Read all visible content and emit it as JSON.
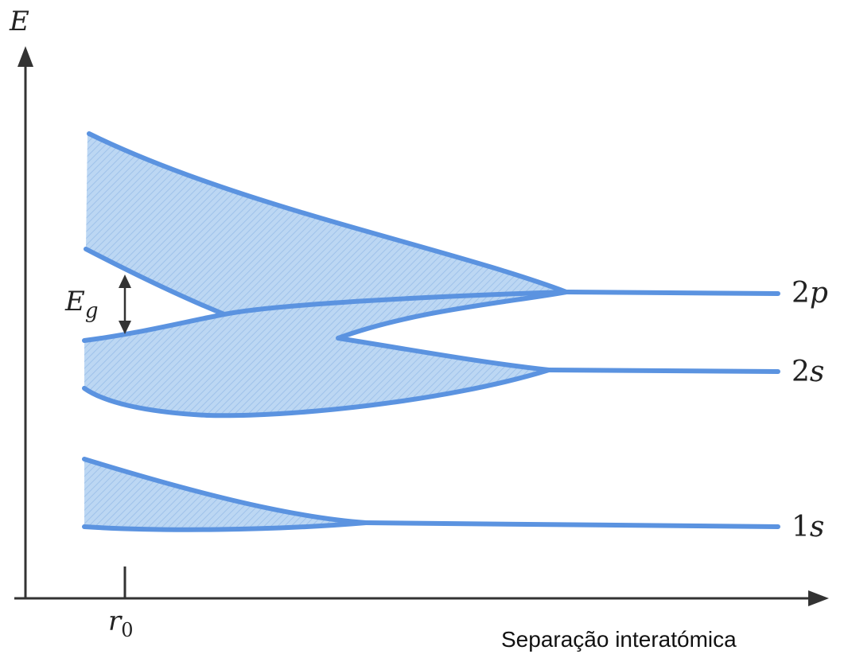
{
  "axes": {
    "y_label": "E",
    "x_label": "Separação interatómica",
    "r0_label": "r",
    "r0_subscript": "0"
  },
  "bands": [
    {
      "name": "2p",
      "level_label": "2",
      "level_letter": "p"
    },
    {
      "name": "2s",
      "level_label": "2",
      "level_letter": "s"
    },
    {
      "name": "1s",
      "level_label": "1",
      "level_letter": "s"
    }
  ],
  "gap": {
    "label": "E",
    "subscript": "g"
  },
  "colors": {
    "band_edge": "#5b93e0",
    "band_fill": "#bcd7f3",
    "axis": "#333333"
  }
}
